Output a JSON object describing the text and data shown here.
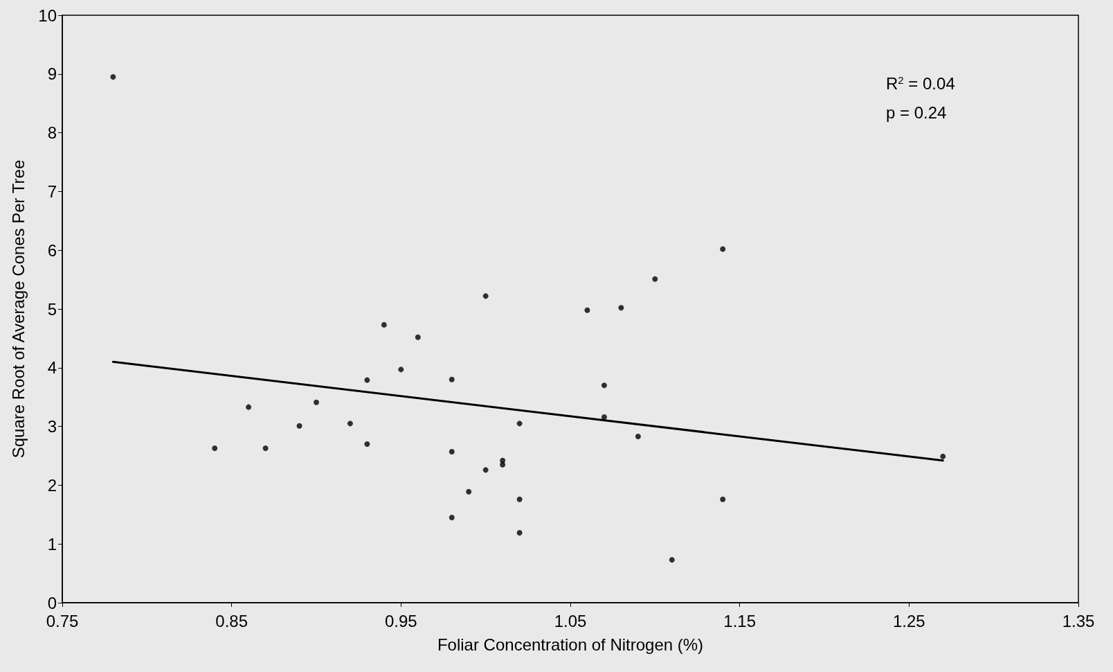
{
  "chart_data": {
    "type": "scatter",
    "xlabel": "Foliar Concentration of Nitrogen (%)",
    "ylabel": "Square Root of Average Cones Per Tree",
    "xlim": [
      0.75,
      1.35
    ],
    "xticks": [
      0.75,
      0.85,
      0.95,
      1.05,
      1.15,
      1.25,
      1.35
    ],
    "ylim": [
      0,
      10
    ],
    "yticks": [
      0,
      1,
      2,
      3,
      4,
      5,
      6,
      7,
      8,
      9,
      10
    ],
    "grid": false,
    "marker": "circle",
    "annotations": [
      "R$^{2}$ = 0.04",
      "p = 0.24"
    ],
    "series": [
      {
        "color": "#000000",
        "x": [
          0.78,
          0.84,
          0.86,
          0.87,
          0.89,
          0.9,
          0.92,
          0.93,
          0.93,
          0.94,
          0.95,
          0.96,
          0.98,
          0.98,
          0.98,
          0.99,
          1.0,
          1.0,
          1.01,
          1.01,
          1.02,
          1.02,
          1.02,
          1.06,
          1.07,
          1.07,
          1.08,
          1.09,
          1.1,
          1.11,
          1.14,
          1.14,
          1.27
        ],
        "values": [
          8.95,
          2.63,
          3.33,
          2.63,
          3.01,
          3.41,
          3.05,
          3.79,
          2.7,
          4.73,
          3.97,
          4.52,
          3.8,
          2.57,
          1.45,
          1.89,
          5.22,
          2.26,
          2.42,
          2.35,
          3.05,
          1.76,
          1.19,
          4.98,
          3.7,
          3.16,
          5.02,
          2.83,
          5.51,
          0.73,
          6.02,
          1.76,
          2.49
        ]
      },
      {
        "type": "line",
        "color": "#000000",
        "marker": "none",
        "line_style": "solid",
        "x": [
          0.78,
          1.27
        ],
        "values": [
          4.1,
          2.42
        ]
      }
    ]
  }
}
